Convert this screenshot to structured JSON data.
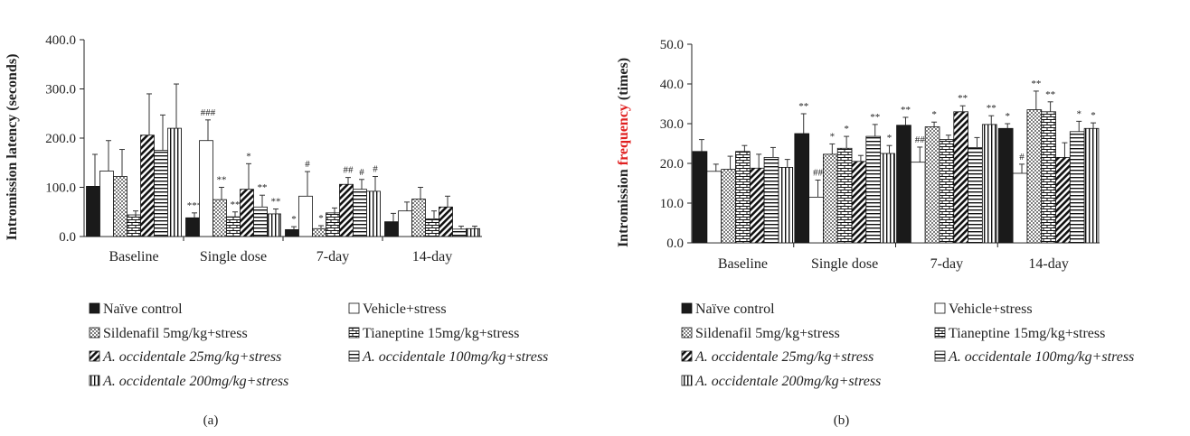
{
  "chart_data": [
    {
      "type": "bar",
      "panel_label": "(a)",
      "ylabel": "Intromission latency (seconds)",
      "ylabel_parts": [],
      "ylim": [
        0,
        400
      ],
      "yticks": [
        "0.0",
        "100.0",
        "200.0",
        "300.0",
        "400.0"
      ],
      "categories": [
        "Baseline",
        "Single dose",
        "7-day",
        "14-day"
      ],
      "series": [
        {
          "name": "Naïve control",
          "values": [
            102,
            38,
            14,
            30
          ],
          "errors": [
            65,
            10,
            6,
            17
          ],
          "marks": [
            "",
            "***",
            "*",
            ""
          ]
        },
        {
          "name": "Vehicle+stress",
          "values": [
            133,
            195,
            82,
            52
          ],
          "errors": [
            62,
            42,
            50,
            18
          ],
          "marks": [
            "",
            "###",
            "#",
            ""
          ]
        },
        {
          "name": "Sildenafil 5mg/kg+stress",
          "values": [
            122,
            75,
            16,
            76
          ],
          "errors": [
            55,
            25,
            6,
            24
          ],
          "marks": [
            "",
            "**",
            "*",
            ""
          ]
        },
        {
          "name": "Tianeptine 15mg/kg+stress",
          "values": [
            44,
            40,
            48,
            36
          ],
          "errors": [
            8,
            10,
            10,
            16
          ],
          "marks": [
            "",
            "**",
            "",
            ""
          ]
        },
        {
          "name": "A. occidentale 25mg/kg+stress",
          "values": [
            206,
            96,
            106,
            60
          ],
          "errors": [
            84,
            52,
            14,
            22
          ],
          "marks": [
            "",
            "*",
            "##",
            ""
          ]
        },
        {
          "name": "A. occidentale 100mg/kg+stress",
          "values": [
            175,
            60,
            96,
            15
          ],
          "errors": [
            72,
            24,
            20,
            6
          ],
          "marks": [
            "",
            "**",
            "#",
            ""
          ]
        },
        {
          "name": "A. occidentale 200mg/kg+stress",
          "values": [
            220,
            46,
            92,
            16
          ],
          "errors": [
            90,
            10,
            30,
            5
          ],
          "marks": [
            "",
            "**",
            "#",
            ""
          ]
        }
      ]
    },
    {
      "type": "bar",
      "panel_label": "(b)",
      "ylabel": "",
      "ylabel_parts": [
        {
          "text": "Intromission ",
          "color": "#222222"
        },
        {
          "text": "frequency",
          "color": "#e02020"
        },
        {
          "text": " (times)",
          "color": "#222222"
        }
      ],
      "ylim": [
        0,
        50
      ],
      "yticks": [
        "0.0",
        "10.0",
        "20.0",
        "30.0",
        "40.0",
        "50.0"
      ],
      "categories": [
        "Baseline",
        "Single dose",
        "7-day",
        "14-day"
      ],
      "series": [
        {
          "name": "Naïve control",
          "values": [
            23.0,
            27.5,
            29.6,
            28.8
          ],
          "errors": [
            3.0,
            5.0,
            2.0,
            1.2
          ],
          "marks": [
            "",
            "**",
            "**",
            "*"
          ]
        },
        {
          "name": "Vehicle+stress",
          "values": [
            18.0,
            11.5,
            20.3,
            17.5
          ],
          "errors": [
            1.8,
            4.3,
            3.8,
            2.3
          ],
          "marks": [
            "",
            "##",
            "##",
            "#"
          ]
        },
        {
          "name": "Sildenafil 5mg/kg+stress",
          "values": [
            18.5,
            22.3,
            29.2,
            33.5
          ],
          "errors": [
            3.3,
            2.6,
            1.2,
            4.7
          ],
          "marks": [
            "",
            "*",
            "*",
            "**"
          ]
        },
        {
          "name": "Tianeptine 15mg/kg+stress",
          "values": [
            23.0,
            23.8,
            26.0,
            33.0
          ],
          "errors": [
            1.5,
            3.0,
            1.1,
            2.5
          ],
          "marks": [
            "",
            "*",
            "",
            "**"
          ]
        },
        {
          "name": "A. occidentale 25mg/kg+stress",
          "values": [
            18.8,
            20.5,
            33.0,
            21.5
          ],
          "errors": [
            3.5,
            1.5,
            1.5,
            3.7
          ],
          "marks": [
            "",
            "",
            "**",
            ""
          ]
        },
        {
          "name": "A. occidentale 100mg/kg+stress",
          "values": [
            21.5,
            26.8,
            24.0,
            28.0
          ],
          "errors": [
            2.5,
            3.0,
            2.5,
            2.6
          ],
          "marks": [
            "",
            "**",
            "",
            "*"
          ]
        },
        {
          "name": "A. occidentale 200mg/kg+stress",
          "values": [
            19.0,
            22.5,
            29.8,
            28.8
          ],
          "errors": [
            2.0,
            2.0,
            2.2,
            1.4
          ],
          "marks": [
            "",
            "*",
            "**",
            "*"
          ]
        }
      ]
    }
  ]
}
